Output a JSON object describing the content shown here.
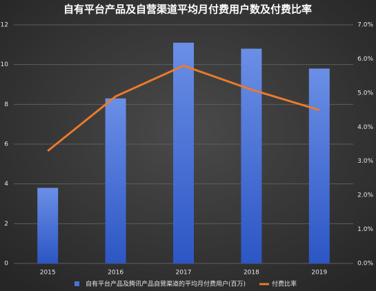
{
  "chart_data": {
    "type": "bar",
    "title": "自有平台产品及自营渠道平均月付费用户数及付费比率",
    "categories": [
      "2015",
      "2016",
      "2017",
      "2018",
      "2019"
    ],
    "series": [
      {
        "name": "自有平台产品及腾讯产品自营渠道的平均月付费用户(百万)",
        "color": "#4a72d8",
        "values": [
          3.8,
          8.3,
          11.1,
          10.8,
          9.8
        ]
      },
      {
        "name": "付费比率",
        "color": "#ec7a2c",
        "type": "line",
        "axis": "y2",
        "values": [
          3.3,
          4.9,
          5.8,
          5.1,
          4.5
        ]
      }
    ],
    "ylim": [
      0,
      12
    ],
    "yticks": [
      0,
      2,
      4,
      6,
      8,
      10,
      12
    ],
    "y2lim": [
      0,
      7
    ],
    "y2ticks": [
      {
        "value": 0,
        "label": "0.0%"
      },
      {
        "value": 1,
        "label": "1.0%"
      },
      {
        "value": 2,
        "label": "2.0%"
      },
      {
        "value": 3,
        "label": "3.0%"
      },
      {
        "value": 4,
        "label": "4.0%"
      },
      {
        "value": 5,
        "label": "5.0%"
      },
      {
        "value": 6,
        "label": "6.0%"
      },
      {
        "value": 7,
        "label": "7.0%"
      }
    ],
    "grid": true
  }
}
